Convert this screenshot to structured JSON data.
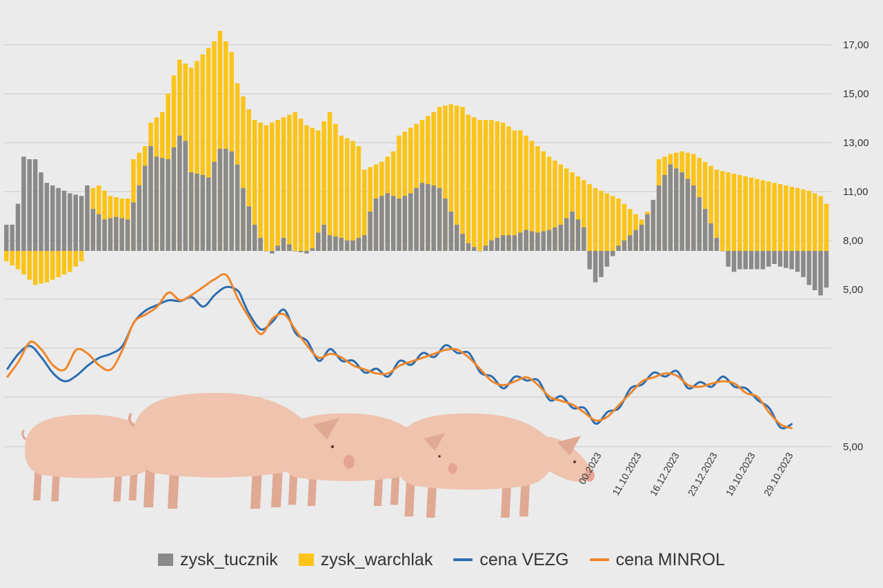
{
  "chart_data": {
    "type": "bar",
    "title": "",
    "xlabel": "",
    "ylabel": "",
    "baseline": 8.0,
    "y_ticks": [
      "17,00",
      "15,00",
      "13,00",
      "11,00",
      "8,00",
      "5,00",
      "5,00"
    ],
    "x_tick_labels": [
      "00.2023",
      "11.10.2023",
      "16.12.2023",
      "23.12.2023",
      "19.10.2023",
      "29.10.2023"
    ],
    "legend_position": "bottom",
    "colors": {
      "zysk_tucznik": "#8a8a8a",
      "zysk_warchlak": "#fcc419",
      "cena_vezg": "#2b6cb0",
      "cena_minrol": "#f0862a",
      "grid": "#c8c8c8",
      "background": "#ebebeb"
    },
    "series": [
      {
        "name": "zysk_tucznik",
        "kind": "bar",
        "knots": [
          [
            0,
            9.0
          ],
          [
            1,
            9.0
          ],
          [
            2,
            9.8
          ],
          [
            3,
            11.6
          ],
          [
            4,
            11.5
          ],
          [
            5,
            11.5
          ],
          [
            6,
            11.0
          ],
          [
            7,
            10.6
          ],
          [
            9,
            10.4
          ],
          [
            11,
            10.2
          ],
          [
            13,
            10.1
          ],
          [
            14,
            10.5
          ],
          [
            15,
            9.6
          ],
          [
            17,
            9.2
          ],
          [
            19,
            9.3
          ],
          [
            21,
            9.2
          ],
          [
            23,
            10.5
          ],
          [
            25,
            12.0
          ],
          [
            26,
            11.6
          ],
          [
            28,
            11.5
          ],
          [
            30,
            12.4
          ],
          [
            31,
            12.2
          ],
          [
            32,
            11.0
          ],
          [
            34,
            10.9
          ],
          [
            35,
            10.8
          ],
          [
            36,
            11.4
          ],
          [
            37,
            11.9
          ],
          [
            38,
            11.9
          ],
          [
            39,
            11.8
          ],
          [
            40,
            11.3
          ],
          [
            41,
            10.4
          ],
          [
            43,
            9.0
          ],
          [
            45,
            8.0
          ],
          [
            46,
            7.9
          ],
          [
            47,
            8.2
          ],
          [
            48,
            8.5
          ],
          [
            50,
            8.0
          ],
          [
            52,
            7.9
          ],
          [
            53,
            8.1
          ],
          [
            54,
            8.7
          ],
          [
            55,
            9.0
          ],
          [
            56,
            8.6
          ],
          [
            58,
            8.5
          ],
          [
            59,
            8.4
          ],
          [
            60,
            8.4
          ],
          [
            61,
            8.5
          ],
          [
            62,
            8.6
          ],
          [
            63,
            9.5
          ],
          [
            64,
            10.0
          ],
          [
            66,
            10.2
          ],
          [
            68,
            10.0
          ],
          [
            70,
            10.2
          ],
          [
            72,
            10.6
          ],
          [
            74,
            10.5
          ],
          [
            75,
            10.4
          ],
          [
            76,
            10.0
          ],
          [
            78,
            9.0
          ],
          [
            80,
            8.3
          ],
          [
            82,
            8.0
          ],
          [
            84,
            8.4
          ],
          [
            86,
            8.6
          ],
          [
            87,
            8.6
          ],
          [
            88,
            8.6
          ],
          [
            90,
            8.8
          ],
          [
            92,
            8.7
          ],
          [
            94,
            8.8
          ],
          [
            96,
            9.0
          ],
          [
            98,
            9.5
          ],
          [
            99,
            9.2
          ],
          [
            100,
            8.9
          ],
          [
            101,
            7.3
          ],
          [
            102,
            6.8
          ],
          [
            103,
            7.0
          ],
          [
            104,
            7.4
          ],
          [
            105,
            7.8
          ],
          [
            106,
            8.2
          ],
          [
            108,
            8.6
          ],
          [
            110,
            9.0
          ],
          [
            111,
            9.4
          ],
          [
            113,
            10.5
          ],
          [
            115,
            11.3
          ],
          [
            117,
            11.0
          ],
          [
            119,
            10.5
          ],
          [
            121,
            9.6
          ],
          [
            123,
            8.5
          ],
          [
            124,
            8.0
          ],
          [
            125,
            7.4
          ],
          [
            126,
            7.2
          ],
          [
            127,
            7.3
          ],
          [
            128,
            7.3
          ],
          [
            129,
            7.3
          ],
          [
            131,
            7.3
          ],
          [
            133,
            7.5
          ],
          [
            134,
            7.4
          ],
          [
            136,
            7.3
          ],
          [
            137,
            7.2
          ],
          [
            138,
            7.0
          ],
          [
            139,
            6.7
          ],
          [
            140,
            6.5
          ],
          [
            141,
            6.3
          ],
          [
            142,
            6.6
          ]
        ]
      },
      {
        "name": "zysk_warchlak",
        "kind": "bar",
        "knots": [
          [
            0,
            7.6
          ],
          [
            2,
            7.3
          ],
          [
            5,
            6.7
          ],
          [
            7,
            6.8
          ],
          [
            9,
            7.0
          ],
          [
            11,
            7.2
          ],
          [
            13,
            7.6
          ],
          [
            14,
            10.0
          ],
          [
            15,
            10.4
          ],
          [
            16,
            10.5
          ],
          [
            18,
            10.1
          ],
          [
            20,
            10.0
          ],
          [
            21,
            10.0
          ],
          [
            22,
            11.5
          ],
          [
            24,
            12.0
          ],
          [
            25,
            12.9
          ],
          [
            27,
            13.3
          ],
          [
            29,
            14.7
          ],
          [
            30,
            15.3
          ],
          [
            32,
            15.0
          ],
          [
            34,
            15.5
          ],
          [
            36,
            16.0
          ],
          [
            37,
            16.4
          ],
          [
            39,
            15.6
          ],
          [
            40,
            14.4
          ],
          [
            42,
            13.4
          ],
          [
            43,
            13.0
          ],
          [
            45,
            12.8
          ],
          [
            47,
            13.0
          ],
          [
            49,
            13.2
          ],
          [
            50,
            13.3
          ],
          [
            52,
            12.8
          ],
          [
            54,
            12.6
          ],
          [
            56,
            13.3
          ],
          [
            58,
            12.4
          ],
          [
            60,
            12.2
          ],
          [
            61,
            12.0
          ],
          [
            62,
            11.1
          ],
          [
            63,
            11.2
          ],
          [
            65,
            11.4
          ],
          [
            67,
            11.8
          ],
          [
            68,
            12.4
          ],
          [
            70,
            12.7
          ],
          [
            72,
            13.0
          ],
          [
            74,
            13.3
          ],
          [
            75,
            13.5
          ],
          [
            77,
            13.6
          ],
          [
            79,
            13.5
          ],
          [
            80,
            13.2
          ],
          [
            82,
            13.0
          ],
          [
            84,
            13.0
          ],
          [
            86,
            12.9
          ],
          [
            88,
            12.6
          ],
          [
            89,
            12.6
          ],
          [
            90,
            12.4
          ],
          [
            92,
            12.0
          ],
          [
            94,
            11.6
          ],
          [
            96,
            11.3
          ],
          [
            98,
            11.0
          ],
          [
            100,
            10.7
          ],
          [
            102,
            10.4
          ],
          [
            104,
            10.2
          ],
          [
            106,
            10.0
          ],
          [
            108,
            9.6
          ],
          [
            110,
            9.2
          ],
          [
            112,
            9.8
          ],
          [
            113,
            11.5
          ],
          [
            115,
            11.7
          ],
          [
            117,
            11.8
          ],
          [
            119,
            11.7
          ],
          [
            121,
            11.4
          ],
          [
            123,
            11.1
          ],
          [
            125,
            11.0
          ],
          [
            127,
            10.9
          ],
          [
            129,
            10.8
          ],
          [
            131,
            10.7
          ],
          [
            133,
            10.6
          ],
          [
            135,
            10.5
          ],
          [
            137,
            10.4
          ],
          [
            139,
            10.3
          ],
          [
            141,
            10.1
          ],
          [
            142,
            9.8
          ]
        ]
      },
      {
        "name": "cena VEZG",
        "kind": "line",
        "points": [
          [
            0,
            3.9
          ],
          [
            2,
            4.1
          ],
          [
            4,
            4.2
          ],
          [
            6,
            4.05
          ],
          [
            8,
            3.85
          ],
          [
            10,
            3.75
          ],
          [
            12,
            3.82
          ],
          [
            14,
            3.95
          ],
          [
            16,
            4.05
          ],
          [
            18,
            4.1
          ],
          [
            20,
            4.2
          ],
          [
            22,
            4.5
          ],
          [
            24,
            4.65
          ],
          [
            26,
            4.72
          ],
          [
            28,
            4.78
          ],
          [
            30,
            4.77
          ],
          [
            32,
            4.82
          ],
          [
            34,
            4.7
          ],
          [
            36,
            4.85
          ],
          [
            38,
            4.95
          ],
          [
            40,
            4.9
          ],
          [
            41,
            4.75
          ]
        ]
      },
      {
        "name": "cena MINROL",
        "kind": "line",
        "points": [
          [
            0,
            3.8
          ],
          [
            2,
            4.0
          ],
          [
            4,
            4.25
          ],
          [
            6,
            4.15
          ],
          [
            8,
            3.95
          ],
          [
            10,
            3.9
          ],
          [
            12,
            4.15
          ],
          [
            14,
            4.1
          ],
          [
            16,
            3.95
          ],
          [
            18,
            3.9
          ],
          [
            20,
            4.15
          ],
          [
            22,
            4.5
          ],
          [
            24,
            4.6
          ],
          [
            26,
            4.7
          ],
          [
            28,
            4.88
          ],
          [
            30,
            4.78
          ],
          [
            32,
            4.85
          ],
          [
            34,
            4.95
          ],
          [
            36,
            5.05
          ],
          [
            38,
            5.1
          ],
          [
            40,
            4.8
          ],
          [
            42,
            4.55
          ],
          [
            44,
            4.35
          ],
          [
            46,
            4.55
          ],
          [
            48,
            4.6
          ],
          [
            50,
            4.4
          ],
          [
            52,
            4.2
          ],
          [
            54,
            4.05
          ],
          [
            56,
            4.1
          ],
          [
            58,
            4.05
          ],
          [
            60,
            3.95
          ],
          [
            62,
            3.9
          ],
          [
            64,
            3.85
          ],
          [
            66,
            3.85
          ],
          [
            68,
            3.95
          ],
          [
            70,
            4.0
          ],
          [
            72,
            4.05
          ],
          [
            74,
            4.1
          ],
          [
            76,
            4.15
          ],
          [
            78,
            4.15
          ],
          [
            80,
            4.05
          ],
          [
            82,
            3.9
          ],
          [
            84,
            3.75
          ],
          [
            86,
            3.7
          ],
          [
            88,
            3.75
          ],
          [
            90,
            3.8
          ],
          [
            92,
            3.7
          ],
          [
            94,
            3.55
          ],
          [
            96,
            3.5
          ],
          [
            98,
            3.45
          ],
          [
            100,
            3.35
          ],
          [
            102,
            3.25
          ],
          [
            104,
            3.3
          ],
          [
            106,
            3.45
          ],
          [
            108,
            3.6
          ],
          [
            110,
            3.75
          ],
          [
            112,
            3.8
          ],
          [
            114,
            3.85
          ],
          [
            116,
            3.82
          ],
          [
            118,
            3.7
          ],
          [
            120,
            3.68
          ],
          [
            122,
            3.72
          ],
          [
            124,
            3.75
          ],
          [
            126,
            3.72
          ],
          [
            128,
            3.6
          ],
          [
            130,
            3.55
          ],
          [
            132,
            3.35
          ],
          [
            134,
            3.2
          ],
          [
            136,
            3.15
          ]
        ]
      }
    ]
  }
}
